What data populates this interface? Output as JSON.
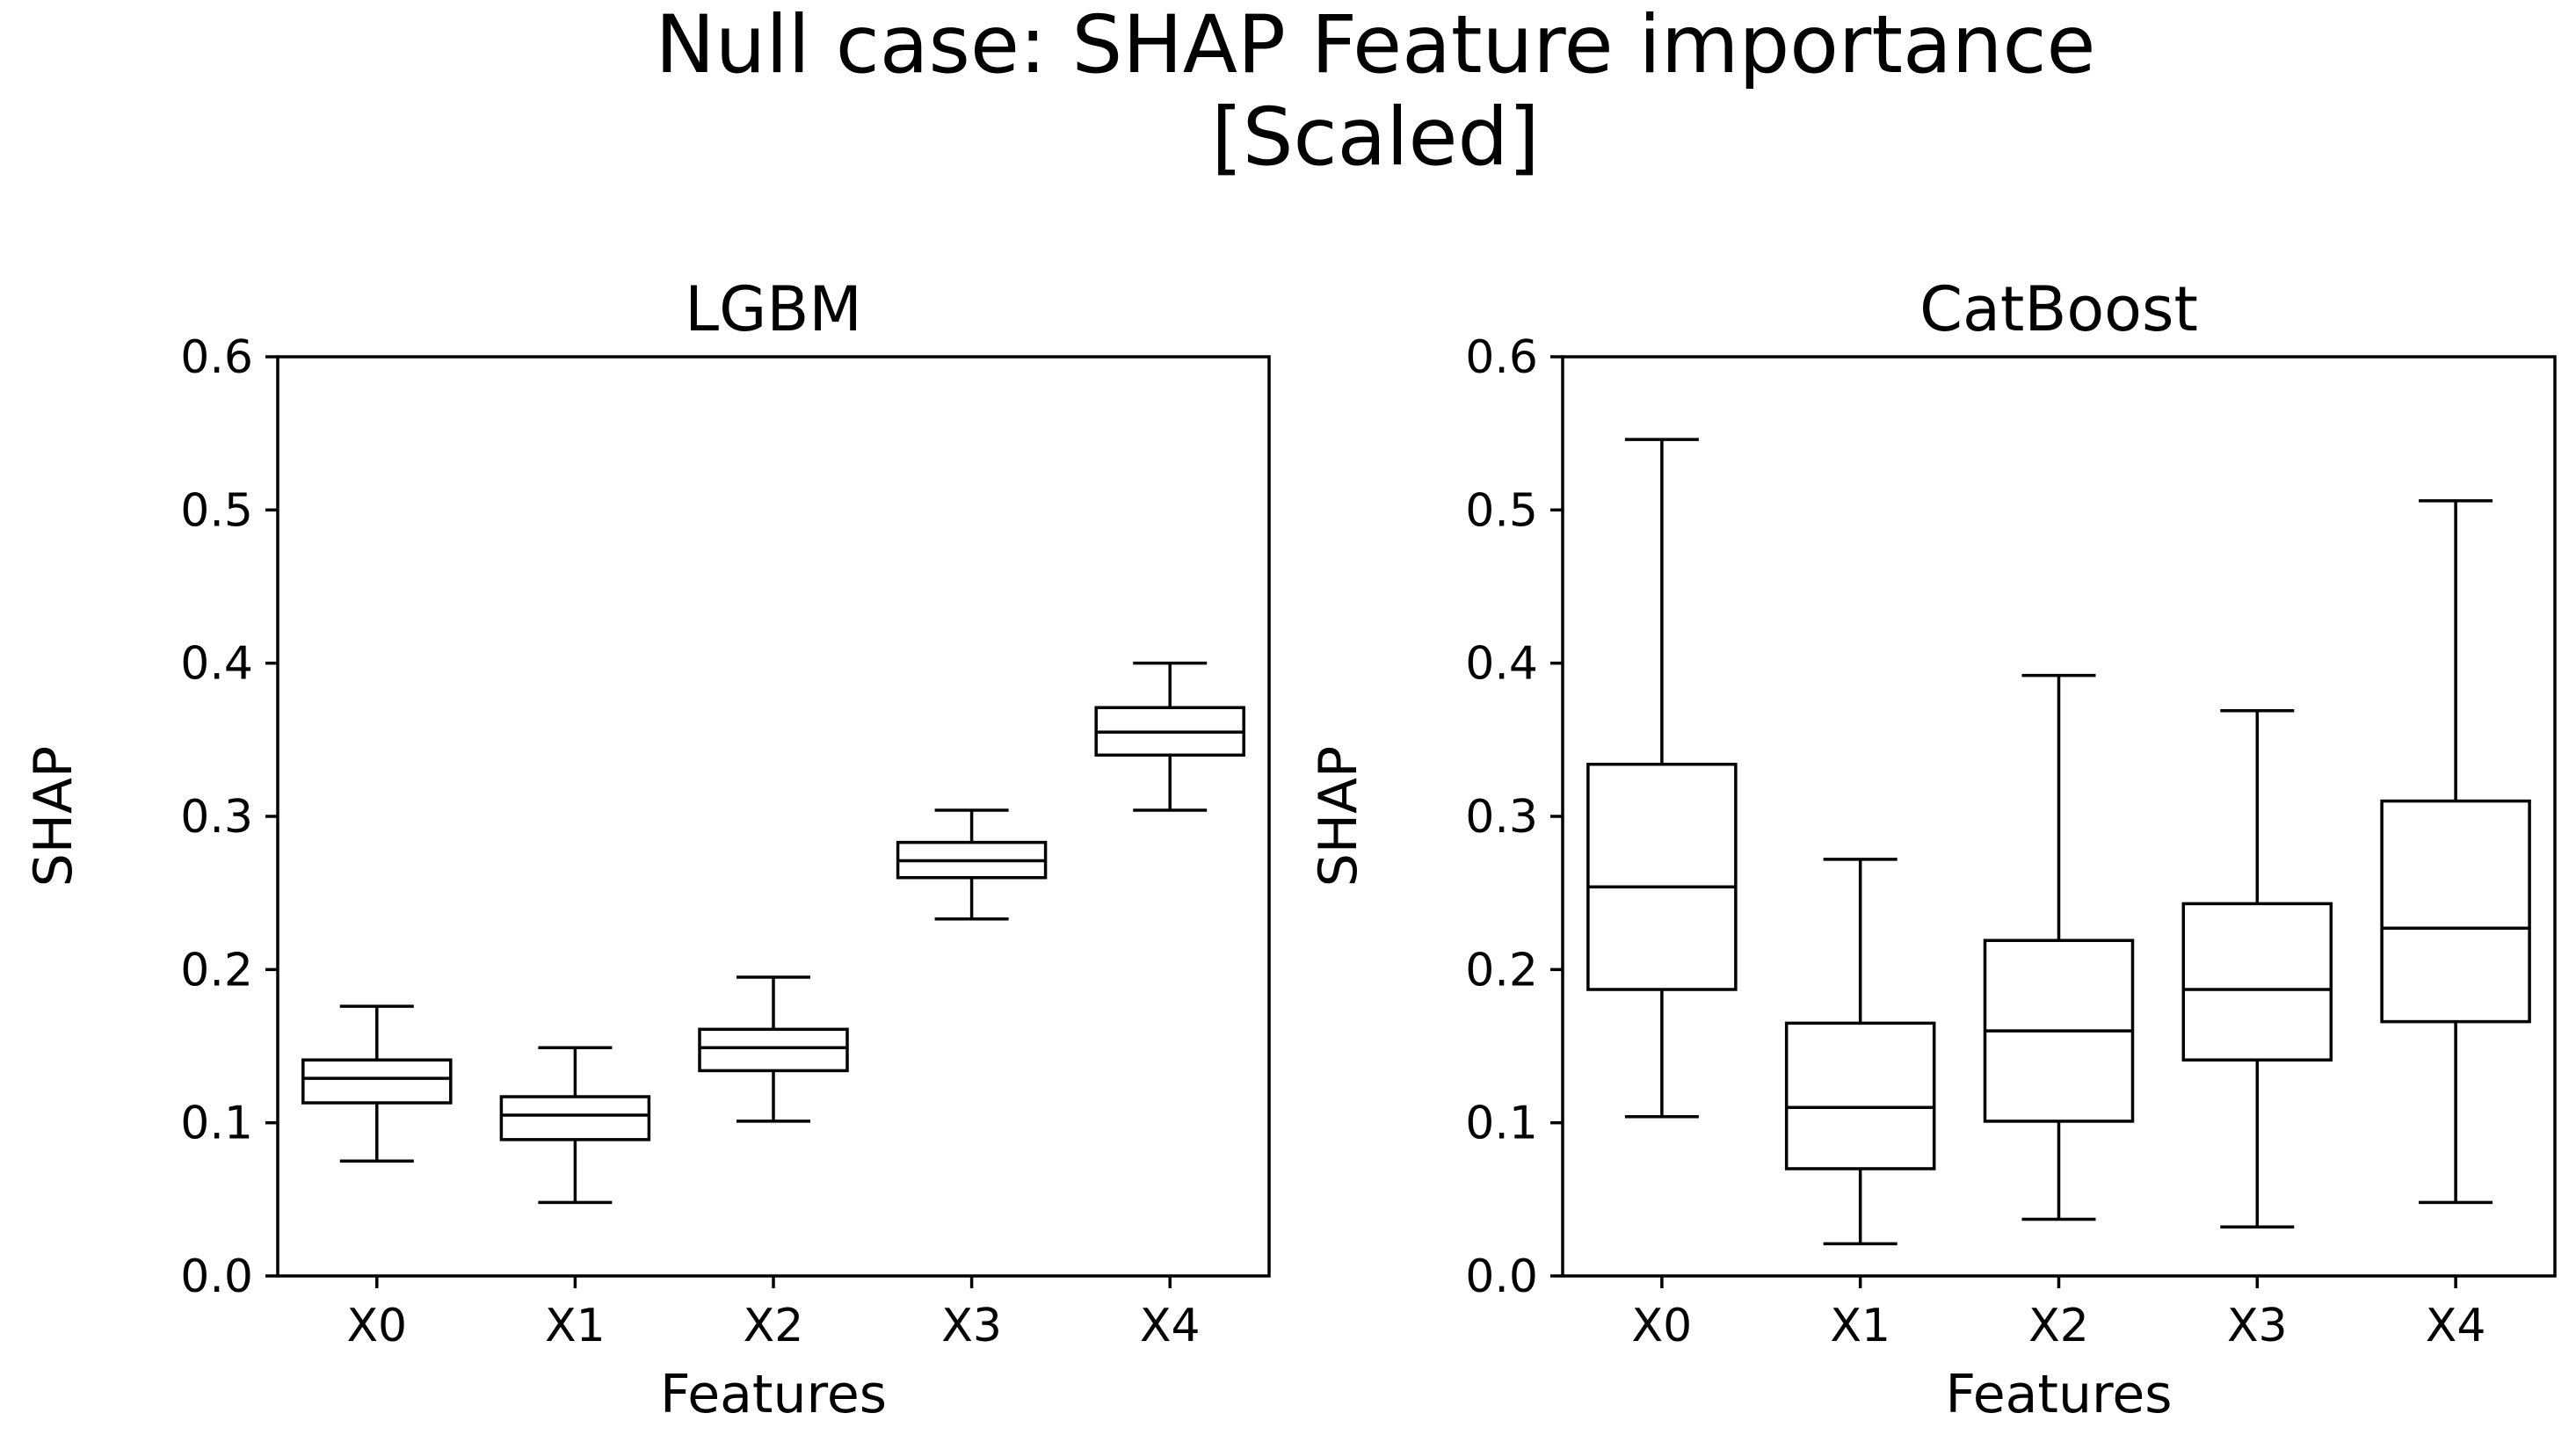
{
  "figure": {
    "title_line1": "Null case: SHAP Feature importance",
    "title_line2": "[Scaled]"
  },
  "chart_data": [
    {
      "type": "box",
      "title": "LGBM",
      "xlabel": "Features",
      "ylabel": "SHAP",
      "ylim": [
        0.0,
        0.6
      ],
      "yticks": [
        "0.0",
        "0.1",
        "0.2",
        "0.3",
        "0.4",
        "0.5",
        "0.6"
      ],
      "grid": false,
      "categories": [
        "X0",
        "X1",
        "X2",
        "X3",
        "X4"
      ],
      "boxes": [
        {
          "whislo": 0.075,
          "q1": 0.113,
          "med": 0.129,
          "q3": 0.141,
          "whishi": 0.176
        },
        {
          "whislo": 0.048,
          "q1": 0.089,
          "med": 0.105,
          "q3": 0.117,
          "whishi": 0.149
        },
        {
          "whislo": 0.101,
          "q1": 0.134,
          "med": 0.149,
          "q3": 0.161,
          "whishi": 0.195
        },
        {
          "whislo": 0.233,
          "q1": 0.26,
          "med": 0.271,
          "q3": 0.283,
          "whishi": 0.304
        },
        {
          "whislo": 0.304,
          "q1": 0.34,
          "med": 0.355,
          "q3": 0.371,
          "whishi": 0.4
        }
      ]
    },
    {
      "type": "box",
      "title": "CatBoost",
      "xlabel": "Features",
      "ylabel": "SHAP",
      "ylim": [
        0.0,
        0.6
      ],
      "yticks": [
        "0.0",
        "0.1",
        "0.2",
        "0.3",
        "0.4",
        "0.5",
        "0.6"
      ],
      "grid": false,
      "categories": [
        "X0",
        "X1",
        "X2",
        "X3",
        "X4"
      ],
      "boxes": [
        {
          "whislo": 0.104,
          "q1": 0.187,
          "med": 0.254,
          "q3": 0.334,
          "whishi": 0.546
        },
        {
          "whislo": 0.021,
          "q1": 0.07,
          "med": 0.11,
          "q3": 0.165,
          "whishi": 0.272
        },
        {
          "whislo": 0.037,
          "q1": 0.101,
          "med": 0.16,
          "q3": 0.219,
          "whishi": 0.392
        },
        {
          "whislo": 0.032,
          "q1": 0.141,
          "med": 0.187,
          "q3": 0.243,
          "whishi": 0.369
        },
        {
          "whislo": 0.048,
          "q1": 0.166,
          "med": 0.227,
          "q3": 0.31,
          "whishi": 0.506
        }
      ]
    }
  ]
}
